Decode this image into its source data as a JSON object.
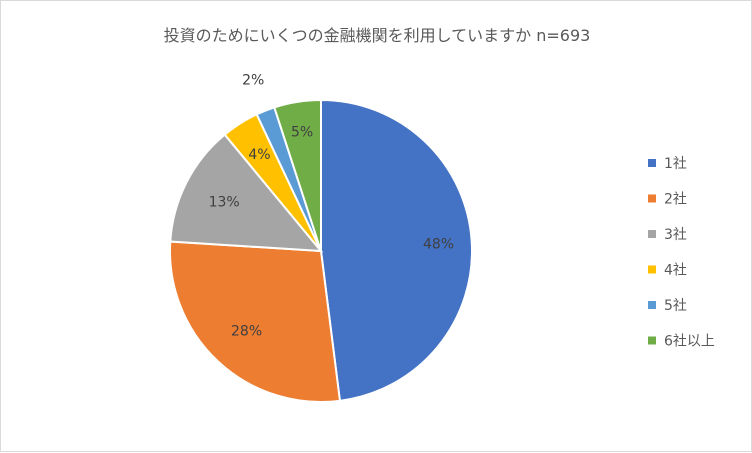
{
  "chart_data": {
    "type": "pie",
    "title": "投資のためにいくつの金融機関を利用していますか n=693",
    "categories": [
      "1社",
      "2社",
      "3社",
      "4社",
      "5社",
      "6社以上"
    ],
    "values": [
      48,
      28,
      13,
      4,
      2,
      5
    ],
    "value_unit": "%",
    "data_labels": [
      "48%",
      "28%",
      "13%",
      "4%",
      "2%",
      "5%"
    ],
    "colors": [
      "#4472C4",
      "#ED7D31",
      "#A5A5A5",
      "#FFC000",
      "#5B9BD5",
      "#70AD47"
    ],
    "legend_placement": "right",
    "start": "12 o'clock",
    "direction": "clockwise"
  }
}
